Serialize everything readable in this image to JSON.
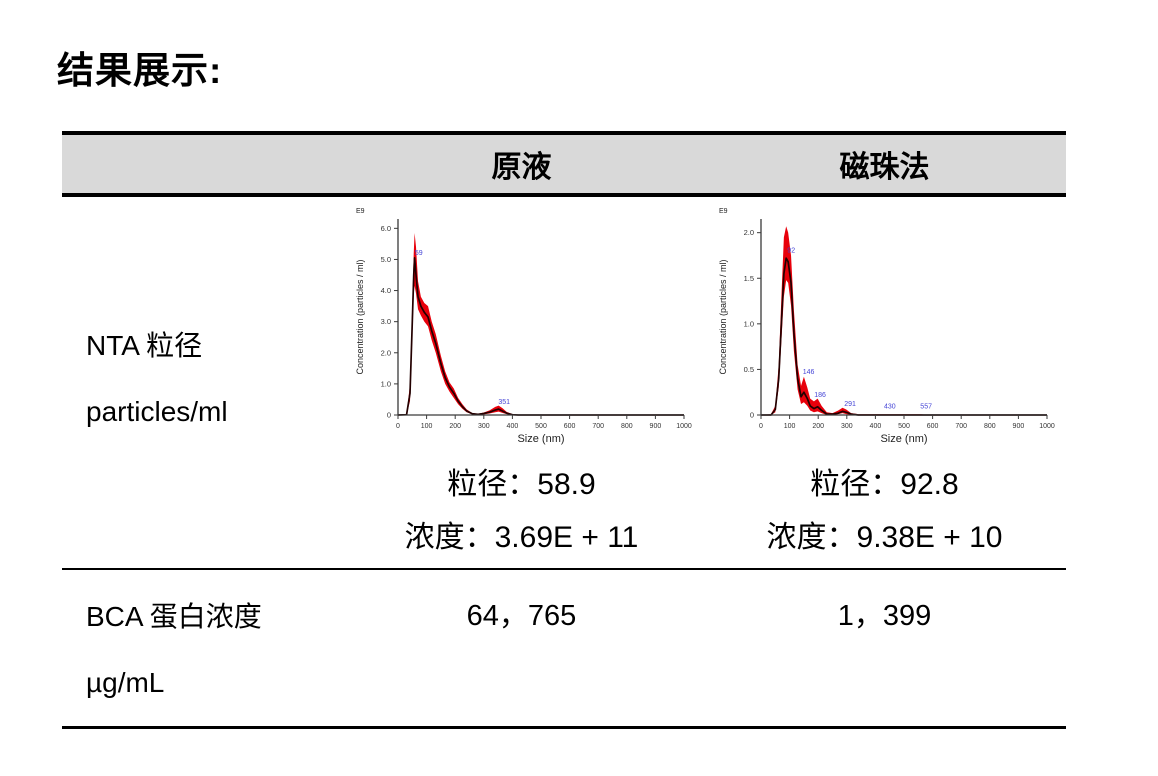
{
  "page": {
    "title": "结果展示:"
  },
  "table": {
    "header": {
      "stock": "原液",
      "beads": "磁珠法"
    },
    "nta": {
      "label_line1": "NTA 粒径",
      "label_line2": "particles/ml",
      "stock": {
        "size": "粒径：58.9",
        "concentration": "浓度：3.69E + 11"
      },
      "beads": {
        "size": "粒径：92.8",
        "concentration": "浓度：9.38E + 10"
      }
    },
    "bca": {
      "label_line1": "BCA 蛋白浓度",
      "label_line2": "µg/mL",
      "stock": "64，765",
      "beads": "1，399"
    }
  },
  "chart_data": [
    {
      "type": "area",
      "name": "nta-size-distribution-stock",
      "corner_label": "E9",
      "xlabel": "Size (nm)",
      "ylabel": "Concentration (particles / ml)",
      "xlim": [
        0,
        1000
      ],
      "ylim": [
        0,
        6.3
      ],
      "xticks": [
        "0",
        "100",
        "200",
        "300",
        "400",
        "500",
        "600",
        "700",
        "800",
        "900",
        "1000"
      ],
      "yticks": [
        "0",
        "1.0",
        "2.0",
        "3.0",
        "4.0",
        "5.0",
        "6.0"
      ],
      "grid": false,
      "peak_size_nm": 58.9,
      "x": [
        0,
        30,
        42,
        50,
        55,
        58,
        63,
        70,
        80,
        92,
        105,
        118,
        132,
        150,
        165,
        180,
        195,
        210,
        225,
        240,
        260,
        280,
        300,
        320,
        340,
        352,
        365,
        380,
        400,
        420,
        1000
      ],
      "upper": [
        0,
        0.02,
        1.0,
        3.6,
        5.2,
        5.85,
        5.4,
        4.3,
        3.8,
        3.6,
        3.5,
        3.0,
        2.6,
        1.9,
        1.4,
        1.05,
        0.85,
        0.55,
        0.35,
        0.18,
        0.06,
        0.04,
        0.08,
        0.15,
        0.26,
        0.3,
        0.22,
        0.1,
        0.03,
        0.01,
        0
      ],
      "mean": [
        0,
        0.01,
        0.7,
        3.0,
        4.5,
        5.05,
        4.5,
        3.8,
        3.5,
        3.3,
        3.15,
        2.7,
        2.3,
        1.65,
        1.2,
        0.9,
        0.7,
        0.45,
        0.27,
        0.13,
        0.04,
        0.02,
        0.05,
        0.09,
        0.16,
        0.19,
        0.13,
        0.06,
        0.01,
        0,
        0
      ],
      "lower": [
        0,
        0,
        0.45,
        2.5,
        3.9,
        4.15,
        3.9,
        3.4,
        3.2,
        3.0,
        2.85,
        2.4,
        2.0,
        1.4,
        1.0,
        0.75,
        0.55,
        0.35,
        0.2,
        0.09,
        0.02,
        0.01,
        0.02,
        0.05,
        0.09,
        0.11,
        0.07,
        0.03,
        0,
        0,
        0
      ],
      "annotations": [
        {
          "x": 59,
          "y": 5.15,
          "label": "59"
        },
        {
          "x": 351,
          "y": 0.36,
          "label": "351"
        }
      ],
      "colors": {
        "band": "#e8000b",
        "line": "#230000",
        "annotation": "#4545d6",
        "axis": "#3a3a3a"
      }
    },
    {
      "type": "area",
      "name": "nta-size-distribution-beads",
      "corner_label": "E9",
      "xlabel": "Size (nm)",
      "ylabel": "Concentration (particles / ml)",
      "xlim": [
        0,
        1000
      ],
      "ylim": [
        0,
        2.15
      ],
      "xticks": [
        "0",
        "100",
        "200",
        "300",
        "400",
        "500",
        "600",
        "700",
        "800",
        "900",
        "1000"
      ],
      "yticks": [
        "0",
        "0.5",
        "1.0",
        "1.5",
        "2.0"
      ],
      "grid": false,
      "peak_size_nm": 92.8,
      "x": [
        0,
        35,
        50,
        62,
        72,
        80,
        88,
        95,
        105,
        115,
        128,
        140,
        150,
        162,
        172,
        185,
        198,
        212,
        230,
        250,
        270,
        285,
        298,
        315,
        340,
        420,
        440,
        540,
        560,
        580,
        1000
      ],
      "upper": [
        0,
        0.01,
        0.1,
        0.55,
        1.35,
        1.95,
        2.07,
        2.0,
        1.75,
        1.15,
        0.55,
        0.32,
        0.42,
        0.3,
        0.18,
        0.15,
        0.18,
        0.1,
        0.03,
        0.02,
        0.05,
        0.08,
        0.06,
        0.02,
        0.01,
        0.01,
        0.01,
        0.01,
        0.01,
        0,
        0
      ],
      "mean": [
        0,
        0,
        0.06,
        0.4,
        1.05,
        1.55,
        1.72,
        1.68,
        1.45,
        0.9,
        0.4,
        0.2,
        0.25,
        0.18,
        0.1,
        0.07,
        0.09,
        0.05,
        0.01,
        0.01,
        0.02,
        0.04,
        0.03,
        0.01,
        0,
        0,
        0,
        0,
        0,
        0,
        0
      ],
      "lower": [
        0,
        0,
        0.03,
        0.3,
        0.85,
        1.3,
        1.48,
        1.45,
        1.2,
        0.7,
        0.28,
        0.12,
        0.14,
        0.1,
        0.05,
        0.03,
        0.04,
        0.02,
        0,
        0,
        0.01,
        0.02,
        0.01,
        0,
        0,
        0,
        0,
        0,
        0,
        0,
        0
      ],
      "annotations": [
        {
          "x": 92,
          "y": 1.78,
          "label": "92"
        },
        {
          "x": 146,
          "y": 0.45,
          "label": "146"
        },
        {
          "x": 186,
          "y": 0.2,
          "label": "186"
        },
        {
          "x": 291,
          "y": 0.1,
          "label": "291"
        },
        {
          "x": 430,
          "y": 0.07,
          "label": "430"
        },
        {
          "x": 557,
          "y": 0.07,
          "label": "557"
        }
      ],
      "colors": {
        "band": "#e8000b",
        "line": "#230000",
        "annotation": "#4545d6",
        "axis": "#3a3a3a"
      }
    }
  ]
}
